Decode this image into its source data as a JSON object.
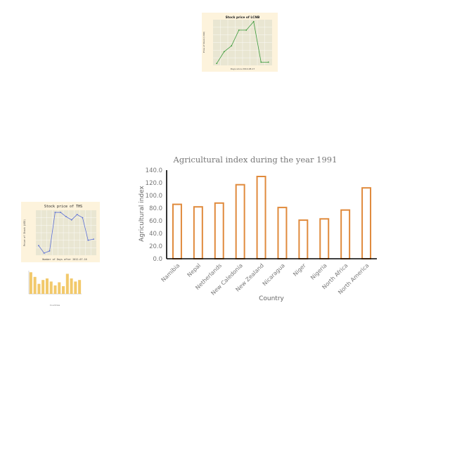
{
  "chart_data": [
    {
      "id": "main",
      "type": "bar",
      "title": "Agricultural index during the year 1991",
      "xlabel": "Country",
      "ylabel": "Agricultural index",
      "categories": [
        "Namibia",
        "Nepal",
        "Netherlands",
        "New Caledonia",
        "New Zealand",
        "Nicaragua",
        "Niger",
        "Nigeria",
        "North Africa",
        "North America"
      ],
      "values": [
        86,
        82,
        88,
        117,
        130,
        81,
        61,
        63,
        77,
        112
      ],
      "ylim": [
        0,
        140
      ],
      "yticks": [
        "0.0",
        "20.0",
        "40.0",
        "60.0",
        "80.0",
        "100.0",
        "120.0",
        "140.0"
      ],
      "colors": {
        "bar_stroke": "#E08A3C",
        "axis": "#000000",
        "text": "#777777"
      },
      "grid": false
    },
    {
      "id": "top-thumbnail",
      "type": "line",
      "title": "Stock price of LCNB",
      "xlabel": "Days since 2010-08-17",
      "ylabel": "Price of Stock (USD)",
      "x": [
        0,
        1,
        2,
        3,
        4,
        5,
        6,
        7
      ],
      "values": [
        26.8,
        28.6,
        29.5,
        31.9,
        31.9,
        33.2,
        27.0,
        27.0
      ],
      "ylim": [
        26.5,
        33.5
      ],
      "colors": {
        "line": "#3a9a3a",
        "background": "#fdf3dc",
        "plot": "#e9e6d2"
      },
      "grid": true
    },
    {
      "id": "left-thumbnail",
      "type": "line",
      "title": "Stock price of THS",
      "xlabel": "Number of Days after 2012-07-16",
      "ylabel": "Price of Stock (USD)",
      "x": [
        0,
        1,
        2,
        3,
        4,
        5,
        6,
        7,
        8,
        9,
        10
      ],
      "values": [
        101.8,
        101.1,
        101.3,
        104.9,
        104.9,
        104.5,
        104.2,
        104.7,
        104.4,
        102.3,
        102.4
      ],
      "ylim": [
        100.9,
        105.1
      ],
      "colors": {
        "line": "#5b6fd6",
        "background": "#fdf3dc",
        "plot": "#e9e6d2"
      },
      "grid": true
    },
    {
      "id": "bottom-left-thumbnail",
      "type": "bar",
      "title": "",
      "xlabel": "Countries",
      "ylabel": "",
      "values": [
        28,
        22,
        13,
        18,
        20,
        16,
        11,
        15,
        10,
        26,
        20,
        16,
        18
      ],
      "ylim": [
        0,
        30
      ],
      "colors": {
        "bar": "#f2c96b",
        "background": "#ffffff"
      },
      "grid": false
    }
  ]
}
